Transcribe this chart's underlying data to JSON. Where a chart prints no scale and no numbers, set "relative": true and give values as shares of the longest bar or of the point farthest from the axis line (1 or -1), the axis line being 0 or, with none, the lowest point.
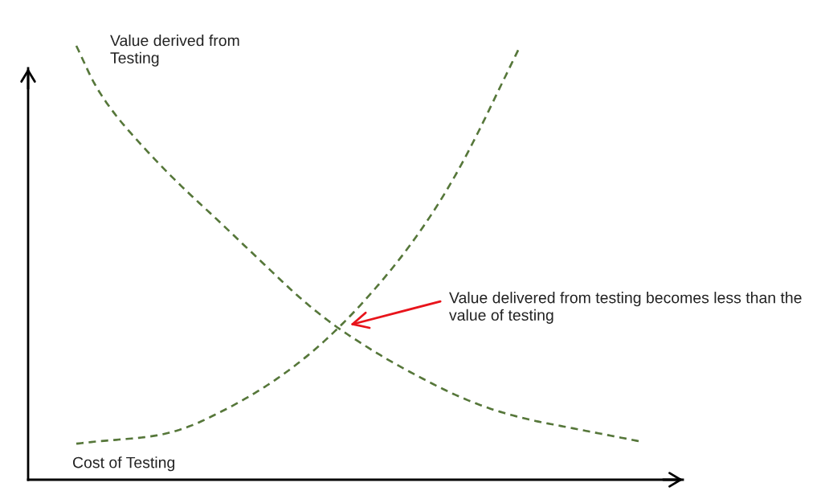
{
  "chart_data": {
    "type": "line",
    "relative": true,
    "line_style": "dashed",
    "categories": [
      null,
      null,
      null,
      null,
      null,
      null,
      null,
      null,
      null,
      null,
      null,
      null,
      null,
      null,
      null,
      null,
      null,
      null,
      null,
      null,
      null,
      null,
      null,
      null,
      null,
      null,
      null,
      null,
      null
    ],
    "series": [
      {
        "name": "Value derived from\nTesting",
        "color": "#56773a",
        "values": [
          1.0,
          0.905,
          0.838,
          0.784,
          0.734,
          0.687,
          0.643,
          0.6,
          0.556,
          0.512,
          0.468,
          0.425,
          0.386,
          0.351,
          0.32,
          0.291,
          0.264,
          0.239,
          0.215,
          0.193,
          0.174,
          0.158,
          0.145,
          0.134,
          0.125,
          0.116,
          0.107,
          0.098,
          0.089
        ]
      },
      {
        "name": "Cost of Testing",
        "color": "#56773a",
        "values": [
          0.083,
          0.088,
          0.092,
          0.096,
          0.102,
          0.113,
          0.13,
          0.152,
          0.176,
          0.203,
          0.233,
          0.267,
          0.305,
          0.348,
          0.395,
          0.447,
          0.503,
          0.565,
          0.634,
          0.712,
          0.8,
          0.895,
          0.99,
          null,
          null,
          null,
          null,
          null,
          null
        ]
      }
    ],
    "annotations": [
      "Value delivered from testing becomes less than the\nvalue of testing"
    ]
  }
}
